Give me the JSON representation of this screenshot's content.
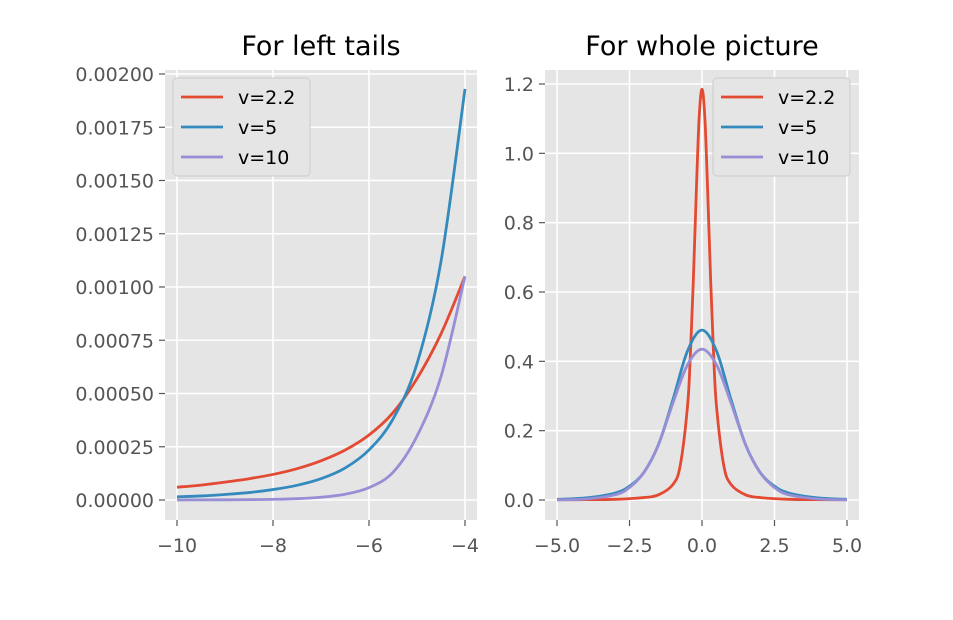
{
  "chart_data": [
    {
      "type": "line",
      "title": "For left tails",
      "xlabel": "",
      "ylabel": "",
      "xlim": [
        -10,
        -4
      ],
      "ylim": [
        0,
        0.002
      ],
      "xticks": [
        -10,
        -8,
        -6,
        -4
      ],
      "xtick_labels": [
        "−10",
        "−8",
        "−6",
        "−4"
      ],
      "yticks": [
        0,
        0.00025,
        0.0005,
        0.00075,
        0.001,
        0.00125,
        0.0015,
        0.00175,
        0.002
      ],
      "ytick_labels": [
        "0.00000",
        "0.00025",
        "0.00050",
        "0.00075",
        "0.00100",
        "0.00125",
        "0.00150",
        "0.00175",
        "0.00200"
      ],
      "grid": true,
      "legend_position": "top-left",
      "series": [
        {
          "name": "v=2.2",
          "color": "#E24A33",
          "x": [
            -10,
            -9.5,
            -9,
            -8.5,
            -8,
            -7.5,
            -7,
            -6.5,
            -6,
            -5.5,
            -5,
            -4.5,
            -4
          ],
          "y": [
            6e-05,
            7e-05,
            8.4e-05,
            0.0001,
            0.00012,
            0.000147,
            0.000184,
            0.000234,
            0.000305,
            0.00041,
            0.00057,
            0.00078,
            0.00105
          ]
        },
        {
          "name": "v=5",
          "color": "#348ABD",
          "x": [
            -10,
            -9.5,
            -9,
            -8.5,
            -8,
            -7.5,
            -7,
            -6.5,
            -6,
            -5.5,
            -5,
            -4.5,
            -4
          ],
          "y": [
            1.5e-05,
            1.9e-05,
            2.6e-05,
            3.5e-05,
            4.9e-05,
            6.9e-05,
            0.0001,
            0.00015,
            0.000235,
            0.00038,
            0.00064,
            0.00112,
            0.00193
          ]
        },
        {
          "name": "v=10",
          "color": "#988ED5",
          "x": [
            -10,
            -9.5,
            -9,
            -8.5,
            -8,
            -7.5,
            -7,
            -6.5,
            -6,
            -5.5,
            -5,
            -4.5,
            -4
          ],
          "y": [
            3e-07,
            5e-07,
            9e-07,
            1.6e-06,
            3.1e-06,
            6.1e-06,
            1.3e-05,
            2.7e-05,
            5.8e-05,
            0.00013,
            0.0003,
            0.00058,
            0.00105
          ]
        }
      ]
    },
    {
      "type": "line",
      "title": "For whole picture",
      "xlabel": "",
      "ylabel": "",
      "xlim": [
        -5,
        5
      ],
      "ylim": [
        0,
        1.2
      ],
      "xticks": [
        -5,
        -2.5,
        0,
        2.5,
        5
      ],
      "xtick_labels": [
        "−5.0",
        "−2.5",
        "0.0",
        "2.5",
        "5.0"
      ],
      "yticks": [
        0,
        0.2,
        0.4,
        0.6,
        0.8,
        1.0,
        1.2
      ],
      "ytick_labels": [
        "0.0",
        "0.2",
        "0.4",
        "0.6",
        "0.8",
        "1.0",
        "1.2"
      ],
      "grid": true,
      "legend_position": "top-right",
      "series": [
        {
          "name": "v=2.2",
          "color": "#E24A33",
          "x": [
            -5,
            -4,
            -3,
            -2,
            -1.5,
            -1,
            -0.75,
            -0.5,
            -0.4,
            -0.3,
            -0.2,
            -0.1,
            0,
            0.1,
            0.2,
            0.3,
            0.4,
            0.5,
            0.75,
            1,
            1.5,
            2,
            3,
            4,
            5
          ],
          "y": [
            0.0008,
            0.001,
            0.002,
            0.007,
            0.015,
            0.045,
            0.1,
            0.27,
            0.42,
            0.63,
            0.88,
            1.1,
            1.185,
            1.1,
            0.88,
            0.63,
            0.42,
            0.27,
            0.1,
            0.045,
            0.015,
            0.007,
            0.002,
            0.001,
            0.0008
          ]
        },
        {
          "name": "v=5",
          "color": "#348ABD",
          "x": [
            -5,
            -4,
            -3,
            -2.5,
            -2,
            -1.5,
            -1,
            -0.5,
            0,
            0.5,
            1,
            1.5,
            2,
            2.5,
            3,
            4,
            5
          ],
          "y": [
            0.002,
            0.006,
            0.02,
            0.04,
            0.08,
            0.16,
            0.29,
            0.43,
            0.49,
            0.43,
            0.29,
            0.16,
            0.08,
            0.04,
            0.02,
            0.006,
            0.002
          ]
        },
        {
          "name": "v=10",
          "color": "#988ED5",
          "x": [
            -5,
            -4,
            -3,
            -2.5,
            -2,
            -1.5,
            -1,
            -0.5,
            0,
            0.5,
            1,
            1.5,
            2,
            2.5,
            3,
            4,
            5
          ],
          "y": [
            0.0005,
            0.003,
            0.015,
            0.036,
            0.08,
            0.16,
            0.28,
            0.39,
            0.435,
            0.39,
            0.28,
            0.16,
            0.08,
            0.036,
            0.015,
            0.003,
            0.0005
          ]
        }
      ]
    }
  ]
}
